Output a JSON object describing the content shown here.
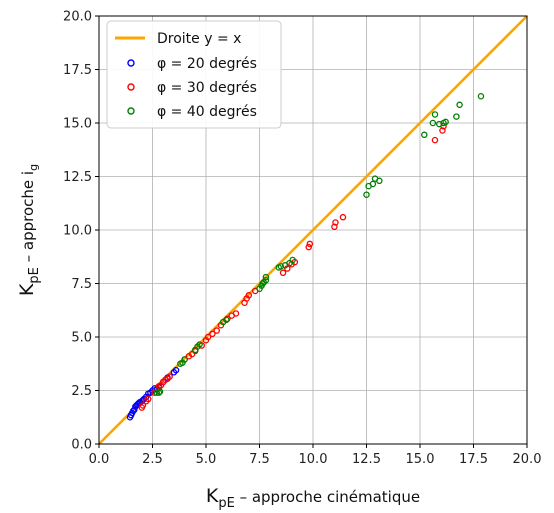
{
  "chart_data": {
    "type": "scatter",
    "xlim": [
      0,
      20
    ],
    "ylim": [
      0,
      20
    ],
    "ticks": {
      "x": [
        "0.0",
        "2.5",
        "5.0",
        "7.5",
        "10.0",
        "12.5",
        "15.0",
        "17.5",
        "20.0"
      ],
      "y": [
        "0.0",
        "2.5",
        "5.0",
        "7.5",
        "10.0",
        "12.5",
        "15.0",
        "17.5",
        "20.0"
      ],
      "values": [
        0,
        2.5,
        5,
        7.5,
        10,
        12.5,
        15,
        17.5,
        20
      ]
    },
    "grid": true,
    "legend_position": "top-left",
    "xlabel": {
      "main": "K",
      "sub": "pE",
      "rest": " – approche cinématique"
    },
    "ylabel": {
      "main": "K",
      "sub": "pE",
      "rest": " – approche i",
      "rest_sub": "g"
    },
    "reference_line": {
      "name": "Droite y = x",
      "color": "#FFA500",
      "points": [
        [
          0,
          0
        ],
        [
          20,
          20
        ]
      ]
    },
    "series": [
      {
        "name": "φ = 20 degrés",
        "color": "#0000ff",
        "points": [
          [
            1.45,
            1.25
          ],
          [
            1.5,
            1.35
          ],
          [
            1.55,
            1.45
          ],
          [
            1.6,
            1.55
          ],
          [
            1.65,
            1.6
          ],
          [
            1.7,
            1.75
          ],
          [
            1.75,
            1.8
          ],
          [
            1.8,
            1.85
          ],
          [
            1.85,
            1.9
          ],
          [
            1.9,
            1.95
          ],
          [
            2.0,
            2.0
          ],
          [
            2.05,
            2.05
          ],
          [
            2.1,
            2.1
          ],
          [
            2.2,
            2.2
          ],
          [
            2.3,
            2.35
          ],
          [
            2.4,
            2.4
          ],
          [
            2.5,
            2.5
          ],
          [
            2.6,
            2.6
          ],
          [
            2.7,
            2.55
          ],
          [
            2.8,
            2.65
          ],
          [
            3.0,
            2.9
          ],
          [
            3.2,
            3.1
          ],
          [
            3.5,
            3.35
          ],
          [
            3.6,
            3.45
          ]
        ]
      },
      {
        "name": "φ = 30 degrés",
        "color": "#ff0000",
        "points": [
          [
            2.0,
            1.7
          ],
          [
            2.05,
            1.8
          ],
          [
            2.2,
            2.0
          ],
          [
            2.3,
            2.1
          ],
          [
            2.6,
            2.4
          ],
          [
            2.8,
            2.7
          ],
          [
            2.9,
            2.75
          ],
          [
            3.0,
            2.9
          ],
          [
            3.1,
            3.0
          ],
          [
            3.2,
            3.05
          ],
          [
            3.3,
            3.15
          ],
          [
            4.0,
            3.95
          ],
          [
            4.2,
            4.1
          ],
          [
            4.35,
            4.2
          ],
          [
            4.5,
            4.35
          ],
          [
            4.8,
            4.6
          ],
          [
            5.0,
            4.85
          ],
          [
            5.1,
            5.0
          ],
          [
            5.3,
            5.15
          ],
          [
            5.5,
            5.3
          ],
          [
            5.7,
            5.55
          ],
          [
            6.0,
            5.85
          ],
          [
            6.2,
            6.0
          ],
          [
            6.4,
            6.1
          ],
          [
            6.8,
            6.6
          ],
          [
            6.9,
            6.8
          ],
          [
            7.0,
            6.95
          ],
          [
            7.3,
            7.15
          ],
          [
            8.6,
            8.0
          ],
          [
            8.8,
            8.2
          ],
          [
            9.0,
            8.4
          ],
          [
            9.15,
            8.5
          ],
          [
            9.8,
            9.2
          ],
          [
            9.85,
            9.35
          ],
          [
            11.0,
            10.15
          ],
          [
            11.05,
            10.35
          ],
          [
            11.4,
            10.6
          ],
          [
            15.7,
            14.2
          ],
          [
            16.05,
            14.65
          ],
          [
            16.1,
            14.85
          ]
        ]
      },
      {
        "name": "φ = 40 degrés",
        "color": "#008000",
        "points": [
          [
            2.7,
            2.4
          ],
          [
            2.8,
            2.4
          ],
          [
            2.85,
            2.45
          ],
          [
            3.8,
            3.75
          ],
          [
            3.9,
            3.8
          ],
          [
            4.0,
            3.95
          ],
          [
            4.5,
            4.4
          ],
          [
            4.6,
            4.55
          ],
          [
            4.7,
            4.65
          ],
          [
            5.8,
            5.7
          ],
          [
            5.95,
            5.8
          ],
          [
            7.5,
            7.25
          ],
          [
            7.6,
            7.4
          ],
          [
            7.65,
            7.5
          ],
          [
            7.7,
            7.55
          ],
          [
            7.8,
            7.65
          ],
          [
            7.8,
            7.8
          ],
          [
            8.4,
            8.25
          ],
          [
            8.5,
            8.3
          ],
          [
            8.7,
            8.35
          ],
          [
            8.9,
            8.45
          ],
          [
            9.05,
            8.6
          ],
          [
            12.5,
            11.65
          ],
          [
            12.6,
            12.05
          ],
          [
            12.8,
            12.15
          ],
          [
            12.9,
            12.4
          ],
          [
            13.1,
            12.3
          ],
          [
            15.2,
            14.45
          ],
          [
            15.6,
            15.0
          ],
          [
            15.7,
            15.4
          ],
          [
            15.9,
            14.95
          ],
          [
            16.1,
            15.0
          ],
          [
            16.2,
            15.05
          ],
          [
            16.7,
            15.3
          ],
          [
            16.85,
            15.85
          ],
          [
            17.85,
            16.25
          ]
        ]
      }
    ]
  }
}
